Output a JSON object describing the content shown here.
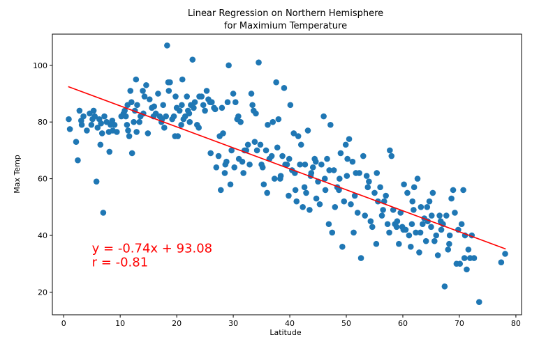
{
  "chart_data": {
    "type": "scatter",
    "title_lines": [
      "Linear Regression on Northern Hemisphere",
      "for Maximium Temperature"
    ],
    "xlabel": "Latitude",
    "ylabel": "Max Temp",
    "xlim": [
      -2,
      81
    ],
    "ylim": [
      12,
      111
    ],
    "xticks": [
      0,
      10,
      20,
      30,
      40,
      50,
      60,
      70,
      80
    ],
    "yticks": [
      20,
      40,
      60,
      80,
      100
    ],
    "grid": false,
    "colors": {
      "points": "#1f77b4",
      "regression_line": "#ff0000",
      "annotation": "#ff0000"
    },
    "regression": {
      "slope": -0.74,
      "intercept": 93.08,
      "x_range": [
        0.8,
        78.2
      ]
    },
    "annotation": {
      "lines": [
        "y = -0.74x + 93.08",
        "r = -0.81"
      ],
      "x": 5,
      "y": 35.5
    },
    "points": [
      [
        0.9,
        81
      ],
      [
        1.1,
        77.5
      ],
      [
        2.2,
        73
      ],
      [
        2.5,
        66.5
      ],
      [
        2.8,
        84
      ],
      [
        3.2,
        79
      ],
      [
        3.5,
        82
      ],
      [
        4.1,
        77
      ],
      [
        4.6,
        83
      ],
      [
        4.9,
        79
      ],
      [
        5.1,
        81
      ],
      [
        5.3,
        84
      ],
      [
        5.5,
        82
      ],
      [
        5.8,
        59
      ],
      [
        6.0,
        78
      ],
      [
        6.3,
        81
      ],
      [
        6.5,
        72
      ],
      [
        6.8,
        76
      ],
      [
        7.0,
        48
      ],
      [
        7.2,
        82
      ],
      [
        7.6,
        80
      ],
      [
        8.0,
        76.5
      ],
      [
        8.1,
        69.5
      ],
      [
        8.3,
        79
      ],
      [
        8.6,
        80.5
      ],
      [
        9.4,
        76.5
      ],
      [
        10.2,
        82
      ],
      [
        10.6,
        83
      ],
      [
        10.8,
        84
      ],
      [
        11.0,
        82
      ],
      [
        11.2,
        79
      ],
      [
        11.4,
        77
      ],
      [
        11.6,
        75
      ],
      [
        11.8,
        91
      ],
      [
        12.0,
        87
      ],
      [
        12.1,
        69
      ],
      [
        12.4,
        80
      ],
      [
        12.6,
        84
      ],
      [
        12.8,
        95
      ],
      [
        13.0,
        86
      ],
      [
        13.4,
        80
      ],
      [
        13.6,
        82
      ],
      [
        14.0,
        91
      ],
      [
        14.3,
        89
      ],
      [
        14.6,
        93
      ],
      [
        14.9,
        76
      ],
      [
        15.2,
        88
      ],
      [
        15.6,
        85
      ],
      [
        15.9,
        82
      ],
      [
        16.3,
        83
      ],
      [
        16.7,
        90
      ],
      [
        17.0,
        82
      ],
      [
        17.3,
        80
      ],
      [
        17.6,
        86
      ],
      [
        17.8,
        78
      ],
      [
        18.1,
        82
      ],
      [
        18.3,
        107
      ],
      [
        18.5,
        94
      ],
      [
        18.6,
        91
      ],
      [
        18.8,
        94
      ],
      [
        19.2,
        81
      ],
      [
        19.5,
        82
      ],
      [
        19.8,
        89
      ],
      [
        20.0,
        85
      ],
      [
        20.2,
        75
      ],
      [
        20.5,
        84
      ],
      [
        20.8,
        79
      ],
      [
        21.0,
        95
      ],
      [
        21.2,
        81
      ],
      [
        21.5,
        82
      ],
      [
        21.8,
        89
      ],
      [
        22.0,
        84
      ],
      [
        22.3,
        80
      ],
      [
        22.5,
        86
      ],
      [
        22.8,
        102
      ],
      [
        23.0,
        85
      ],
      [
        23.2,
        87
      ],
      [
        23.6,
        79
      ],
      [
        24.0,
        89
      ],
      [
        24.4,
        89
      ],
      [
        24.7,
        86
      ],
      [
        25.0,
        84
      ],
      [
        25.3,
        91
      ],
      [
        25.6,
        88
      ],
      [
        26.0,
        69
      ],
      [
        26.2,
        87
      ],
      [
        26.6,
        85
      ],
      [
        27.0,
        64
      ],
      [
        27.4,
        68
      ],
      [
        27.8,
        56
      ],
      [
        28.0,
        85
      ],
      [
        28.2,
        76
      ],
      [
        28.5,
        62
      ],
      [
        28.8,
        66
      ],
      [
        29.0,
        87
      ],
      [
        29.2,
        100
      ],
      [
        29.5,
        58
      ],
      [
        29.7,
        70
      ],
      [
        30.0,
        90
      ],
      [
        30.2,
        64
      ],
      [
        30.4,
        87
      ],
      [
        30.7,
        81
      ],
      [
        31.0,
        67
      ],
      [
        31.3,
        80
      ],
      [
        31.6,
        66
      ],
      [
        32.0,
        70
      ],
      [
        32.3,
        70
      ],
      [
        32.6,
        72
      ],
      [
        32.9,
        65
      ],
      [
        33.2,
        90
      ],
      [
        33.4,
        86
      ],
      [
        33.6,
        84
      ],
      [
        34.0,
        83
      ],
      [
        34.2,
        70
      ],
      [
        34.5,
        101
      ],
      [
        34.8,
        72
      ],
      [
        35.0,
        65
      ],
      [
        35.4,
        58
      ],
      [
        35.8,
        70
      ],
      [
        36.0,
        55
      ],
      [
        36.4,
        67
      ],
      [
        36.8,
        68
      ],
      [
        37.0,
        80
      ],
      [
        37.3,
        60
      ],
      [
        37.6,
        94
      ],
      [
        38.0,
        81
      ],
      [
        38.3,
        60
      ],
      [
        38.7,
        68
      ],
      [
        39.0,
        92
      ],
      [
        39.2,
        65
      ],
      [
        39.5,
        65
      ],
      [
        39.8,
        54
      ],
      [
        40.1,
        86
      ],
      [
        40.4,
        63
      ],
      [
        40.7,
        76
      ],
      [
        41.0,
        56
      ],
      [
        41.2,
        52
      ],
      [
        41.5,
        75
      ],
      [
        41.8,
        65
      ],
      [
        42.0,
        72
      ],
      [
        42.3,
        50
      ],
      [
        42.6,
        57
      ],
      [
        42.9,
        55
      ],
      [
        43.2,
        77
      ],
      [
        43.5,
        49
      ],
      [
        43.8,
        62
      ],
      [
        44.1,
        64
      ],
      [
        44.4,
        67
      ],
      [
        44.7,
        53
      ],
      [
        45.0,
        59
      ],
      [
        45.3,
        51
      ],
      [
        45.6,
        65
      ],
      [
        46.0,
        82
      ],
      [
        46.3,
        56
      ],
      [
        46.6,
        67
      ],
      [
        46.9,
        44
      ],
      [
        47.2,
        79
      ],
      [
        47.5,
        41
      ],
      [
        47.8,
        63
      ],
      [
        48.0,
        50
      ],
      [
        48.4,
        57
      ],
      [
        48.7,
        56
      ],
      [
        49.0,
        69
      ],
      [
        49.3,
        36
      ],
      [
        49.6,
        52
      ],
      [
        49.9,
        72
      ],
      [
        50.2,
        67
      ],
      [
        50.5,
        74
      ],
      [
        50.8,
        51
      ],
      [
        51.1,
        66
      ],
      [
        51.3,
        41
      ],
      [
        51.7,
        62
      ],
      [
        52.0,
        48
      ],
      [
        52.3,
        62
      ],
      [
        52.6,
        32
      ],
      [
        53.0,
        68
      ],
      [
        53.3,
        47
      ],
      [
        53.6,
        61
      ],
      [
        54.0,
        59
      ],
      [
        54.3,
        45
      ],
      [
        54.6,
        43
      ],
      [
        55.0,
        55
      ],
      [
        55.3,
        37
      ],
      [
        55.6,
        52
      ],
      [
        56.0,
        57
      ],
      [
        56.3,
        47
      ],
      [
        56.7,
        52
      ],
      [
        57.0,
        54
      ],
      [
        57.3,
        44
      ],
      [
        57.7,
        70
      ],
      [
        58.0,
        68
      ],
      [
        58.3,
        49
      ],
      [
        58.6,
        44
      ],
      [
        59.0,
        45
      ],
      [
        59.3,
        37
      ],
      [
        59.6,
        48
      ],
      [
        59.9,
        43
      ],
      [
        60.2,
        58
      ],
      [
        60.5,
        42
      ],
      [
        60.8,
        55
      ],
      [
        61.1,
        40
      ],
      [
        61.4,
        36
      ],
      [
        61.7,
        52
      ],
      [
        62.0,
        57
      ],
      [
        62.3,
        41
      ],
      [
        62.6,
        60
      ],
      [
        62.9,
        34
      ],
      [
        63.2,
        50
      ],
      [
        63.5,
        44
      ],
      [
        63.8,
        46
      ],
      [
        64.1,
        38
      ],
      [
        64.4,
        45
      ],
      [
        64.7,
        52
      ],
      [
        65.0,
        43
      ],
      [
        65.3,
        55
      ],
      [
        65.6,
        38
      ],
      [
        65.9,
        40
      ],
      [
        66.2,
        33
      ],
      [
        66.5,
        47
      ],
      [
        66.8,
        42
      ],
      [
        67.1,
        44
      ],
      [
        67.4,
        22
      ],
      [
        67.7,
        47
      ],
      [
        68.0,
        35
      ],
      [
        68.3,
        40
      ],
      [
        68.6,
        53
      ],
      [
        68.9,
        56
      ],
      [
        69.2,
        48
      ],
      [
        69.5,
        30
      ],
      [
        69.8,
        42
      ],
      [
        70.1,
        30
      ],
      [
        70.4,
        44
      ],
      [
        70.7,
        56
      ],
      [
        71.0,
        40
      ],
      [
        71.3,
        28
      ],
      [
        71.6,
        35
      ],
      [
        71.9,
        32
      ],
      [
        72.2,
        40
      ],
      [
        72.6,
        32
      ],
      [
        73.5,
        16.5
      ],
      [
        77.4,
        30.5
      ],
      [
        78.1,
        33.5
      ],
      [
        3.1,
        80.5
      ],
      [
        6.6,
        79.5
      ],
      [
        9.0,
        79
      ],
      [
        12.9,
        76.5
      ],
      [
        16.0,
        85.5
      ],
      [
        19.7,
        75
      ],
      [
        23.9,
        78
      ],
      [
        26.8,
        84.5
      ],
      [
        28.6,
        65
      ],
      [
        31.8,
        62
      ],
      [
        33.8,
        73
      ],
      [
        36.1,
        79
      ],
      [
        38.4,
        61
      ],
      [
        40.9,
        62
      ],
      [
        43.7,
        61
      ],
      [
        46.2,
        60
      ],
      [
        48.8,
        60
      ],
      [
        51.5,
        54
      ],
      [
        53.8,
        57
      ],
      [
        56.5,
        49
      ],
      [
        58.9,
        43
      ],
      [
        61.6,
        44
      ],
      [
        64.3,
        50
      ],
      [
        66.7,
        45
      ],
      [
        68.2,
        37
      ],
      [
        70.9,
        32
      ],
      [
        60.1,
        42
      ],
      [
        61.9,
        49
      ],
      [
        63.1,
        41
      ],
      [
        65.1,
        47
      ],
      [
        57.6,
        41
      ],
      [
        55.4,
        62
      ],
      [
        50.1,
        61
      ],
      [
        47.0,
        63
      ],
      [
        44.6,
        66
      ],
      [
        42.7,
        65
      ],
      [
        39.9,
        67
      ],
      [
        37.8,
        71
      ],
      [
        35.2,
        64
      ],
      [
        30.9,
        82
      ],
      [
        27.6,
        75
      ],
      [
        25.9,
        87
      ],
      [
        22.2,
        83
      ],
      [
        20.9,
        86
      ],
      [
        17.4,
        81
      ],
      [
        14.1,
        83
      ],
      [
        11.3,
        86
      ],
      [
        8.7,
        77
      ]
    ]
  }
}
